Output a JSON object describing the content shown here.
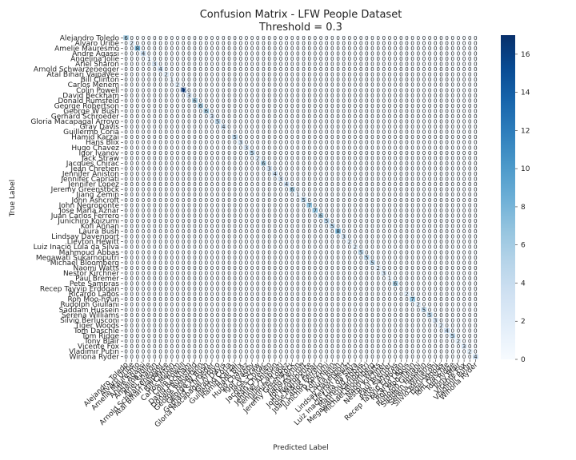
{
  "chart_data": {
    "type": "heatmap",
    "title": "Confusion Matrix - LFW People Dataset",
    "subtitle": "Threshold = 0.3",
    "xlabel": "Predicted Label",
    "ylabel": "True Label",
    "labels": [
      "Alejandro Toledo",
      "Alvaro Uribe",
      "Amelie Mauresmo",
      "Andre Agassi",
      "Angelina Jolie",
      "Ariel Sharon",
      "Arnold Schwarzenegger",
      "Atal Bihari Vajpayee",
      "Bill Clinton",
      "Carlos Menem",
      "Colin Powell",
      "David Beckham",
      "Donald Rumsfeld",
      "George Robertson",
      "George W Bush",
      "Gerhard Schroeder",
      "Gloria Macapagal Arroyo",
      "Gray Davis",
      "Guillermo Coria",
      "Hamid Karzai",
      "Hans Blix",
      "Hugo Chavez",
      "Igor Ivanov",
      "Jack Straw",
      "Jacques Chirac",
      "Jean Chretien",
      "Jennifer Aniston",
      "Jennifer Capriati",
      "Jennifer Lopez",
      "Jeremy Greenstock",
      "Jiang Zemin",
      "John Ashcroft",
      "John Negroponte",
      "Jose Maria Aznar",
      "Juan Carlos Ferrero",
      "Junichiro Koizumi",
      "Kofi Annan",
      "Laura Bush",
      "Lindsay Davenport",
      "Lleyton Hewitt",
      "Luiz Inacio Lula da Silva",
      "Mahmoud Abbas",
      "Megawati Sukarnoputri",
      "Michael Bloomberg",
      "Naomi Watts",
      "Nestor Kirchner",
      "Paul Bremer",
      "Pete Sampras",
      "Recep Tayyip Erdogan",
      "Ricardo Lagos",
      "Roh Moo-hyun",
      "Rudolph Giuliani",
      "Saddam Hussein",
      "Serena Williams",
      "Silvio Berlusconi",
      "Tiger Woods",
      "Tom Daschle",
      "Tom Ridge",
      "Tony Blair",
      "Vicente Fox",
      "Vladimir Putin",
      "Winona Ryder"
    ],
    "diagonal": [
      6,
      2,
      8,
      4,
      1,
      3,
      4,
      2,
      1,
      2,
      17,
      3,
      6,
      6,
      6,
      3,
      5,
      4,
      0,
      5,
      3,
      3,
      5,
      2,
      6,
      3,
      4,
      3,
      4,
      6,
      1,
      5,
      7,
      7,
      6,
      5,
      5,
      8,
      3,
      2,
      2,
      5,
      5,
      5,
      2,
      3,
      1,
      6,
      0,
      2,
      7,
      2,
      5,
      5,
      3,
      2,
      4,
      5,
      2,
      3,
      2,
      4
    ],
    "off_diagonal_value": 0,
    "colorbar": {
      "min": 0,
      "max": 17,
      "ticks": [
        0,
        2,
        4,
        6,
        8,
        10,
        12,
        14,
        16
      ]
    },
    "colormap": "Blues",
    "grid": true
  }
}
